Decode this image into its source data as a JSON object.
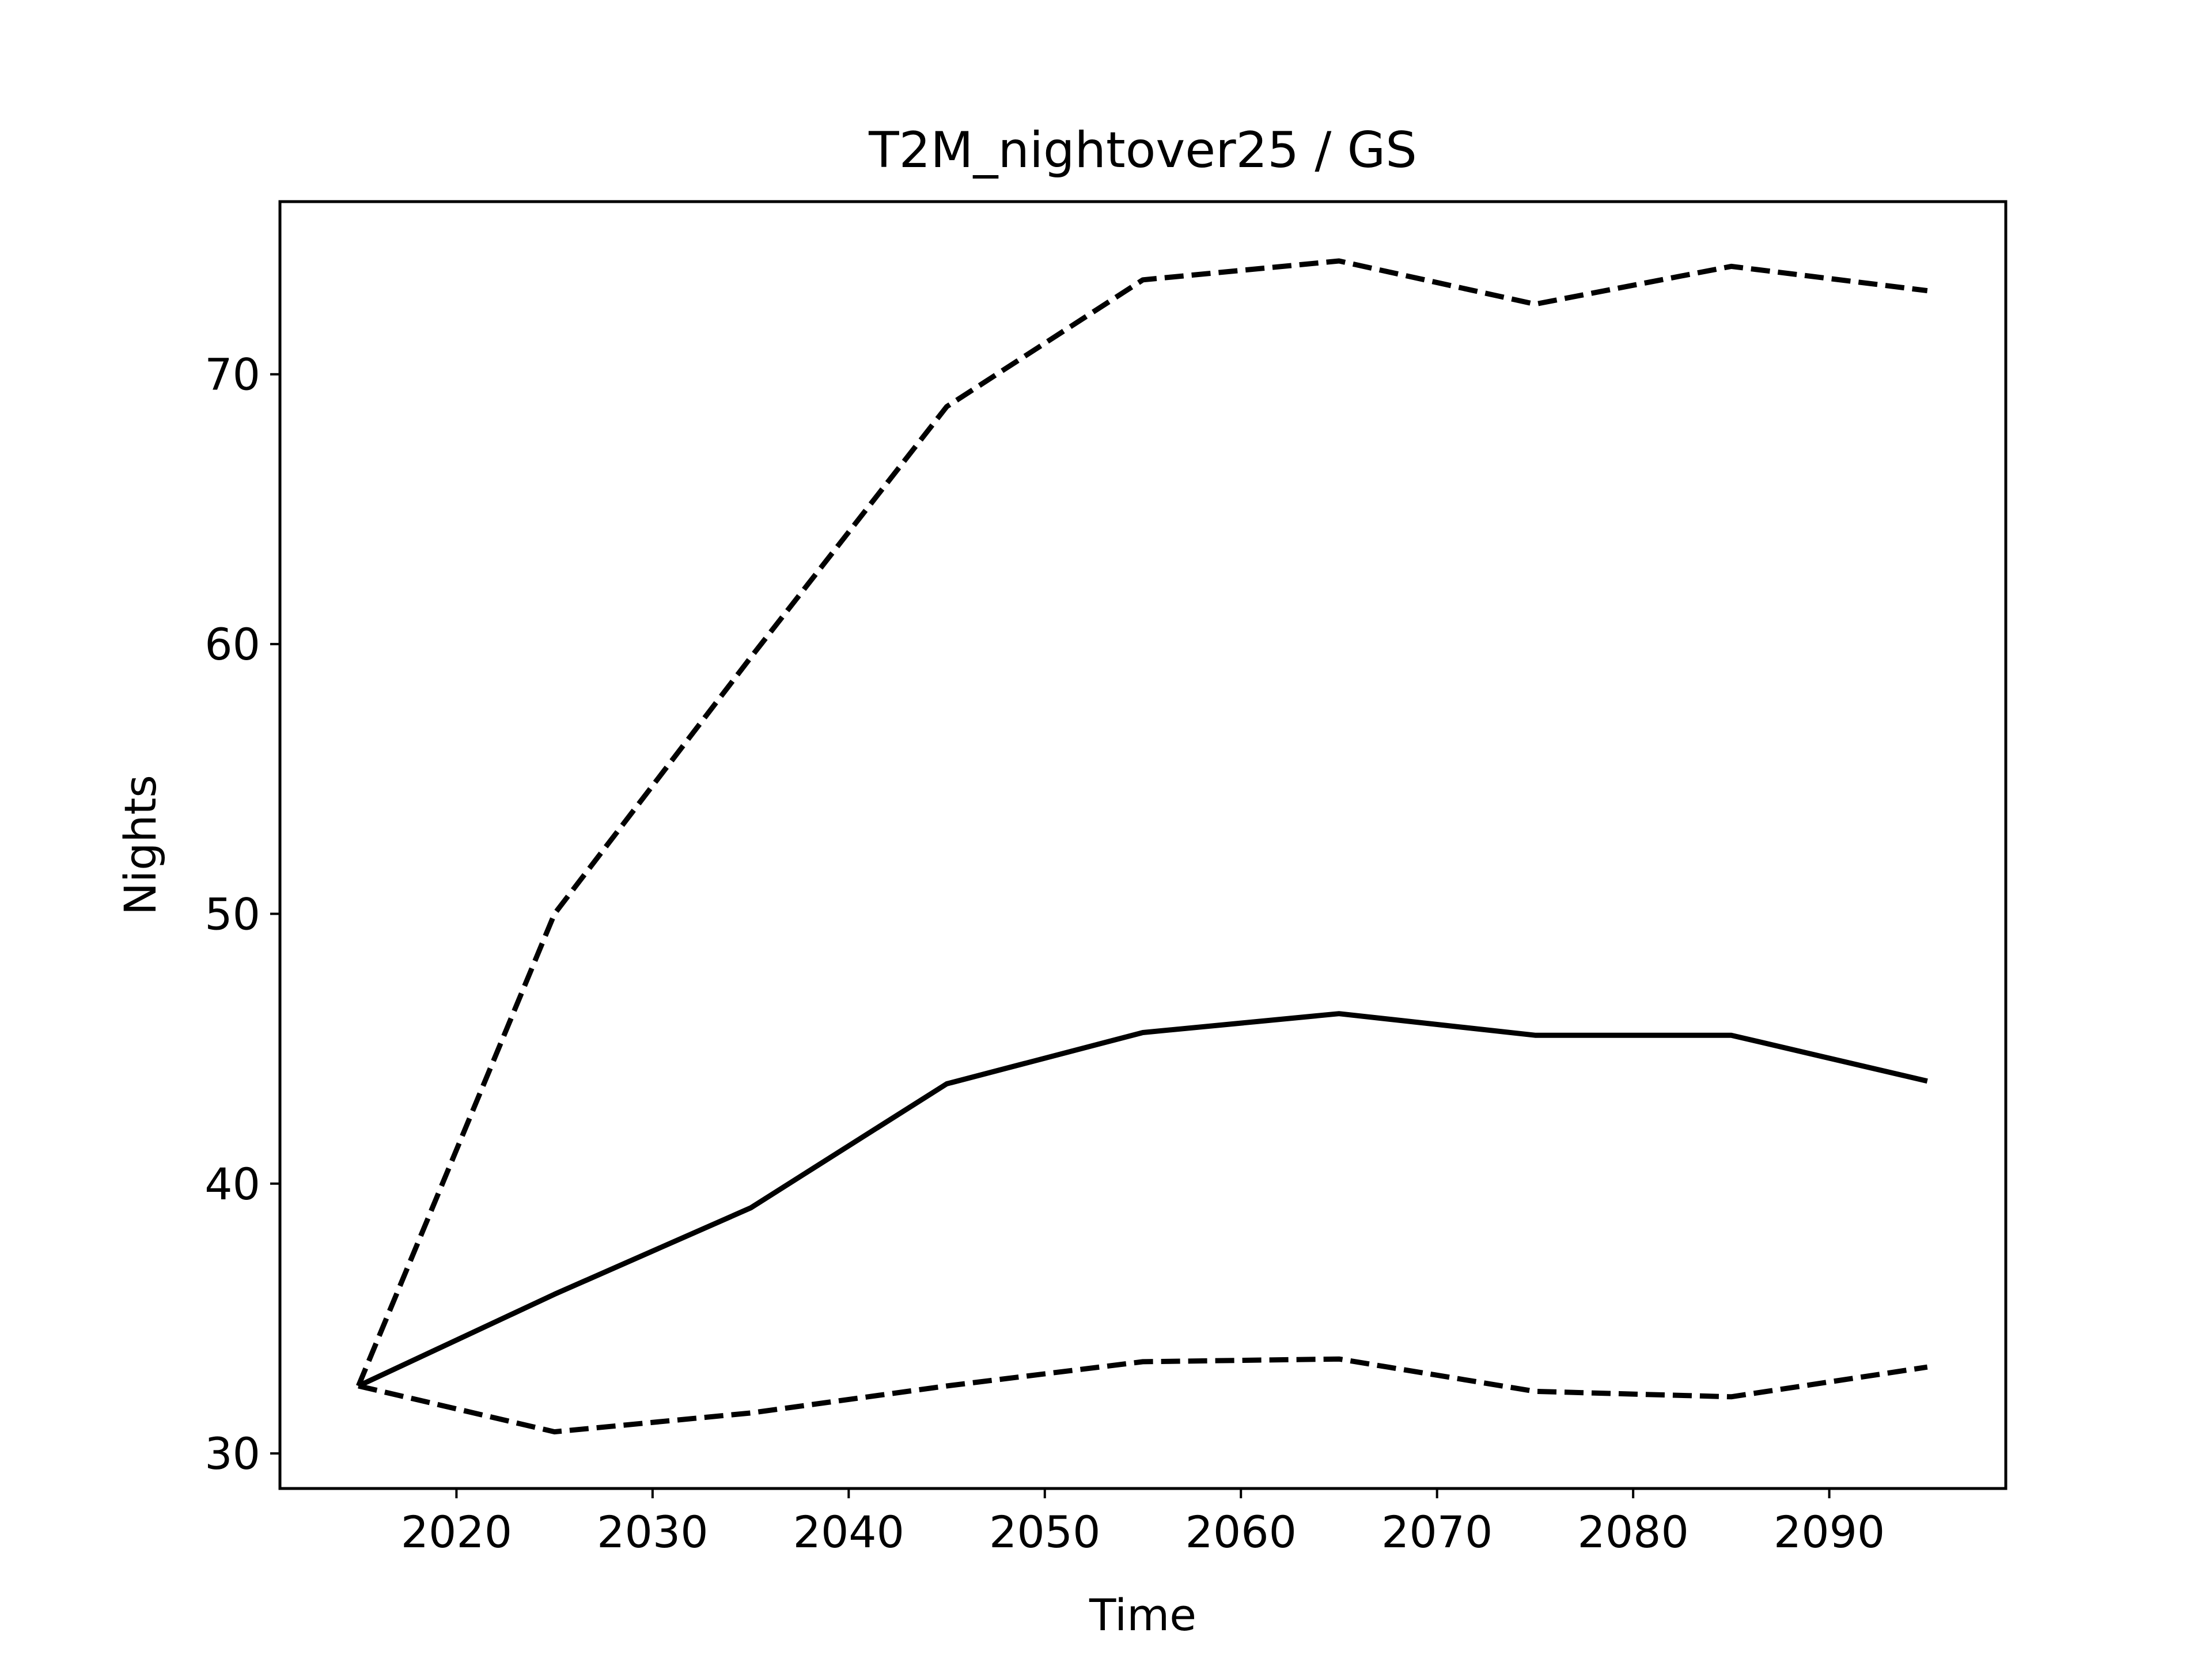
{
  "chart_data": {
    "type": "line",
    "title": "T2M_nightover25 / GS",
    "xlabel": "Time",
    "ylabel": "Nights",
    "xlim": [
      2011.0,
      2099.0
    ],
    "ylim": [
      28.7,
      76.4
    ],
    "xticks": [
      2020,
      2030,
      2040,
      2050,
      2060,
      2070,
      2080,
      2090
    ],
    "yticks": [
      30,
      40,
      50,
      60,
      70
    ],
    "grid": false,
    "legend": "none",
    "x": [
      2015,
      2025,
      2035,
      2045,
      2055,
      2065,
      2075,
      2085,
      2095
    ],
    "series": [
      {
        "style": "dashed",
        "color": "#000000",
        "values": [
          32.5,
          50.0,
          59.5,
          68.8,
          73.5,
          74.2,
          72.6,
          74.0,
          73.1
        ]
      },
      {
        "style": "solid",
        "color": "#000000",
        "values": [
          32.5,
          35.9,
          39.1,
          43.7,
          45.6,
          46.3,
          45.5,
          45.5,
          43.8
        ]
      },
      {
        "style": "dashed",
        "color": "#000000",
        "values": [
          32.5,
          30.8,
          31.5,
          32.5,
          33.4,
          33.5,
          32.3,
          32.1,
          33.2
        ]
      }
    ]
  }
}
